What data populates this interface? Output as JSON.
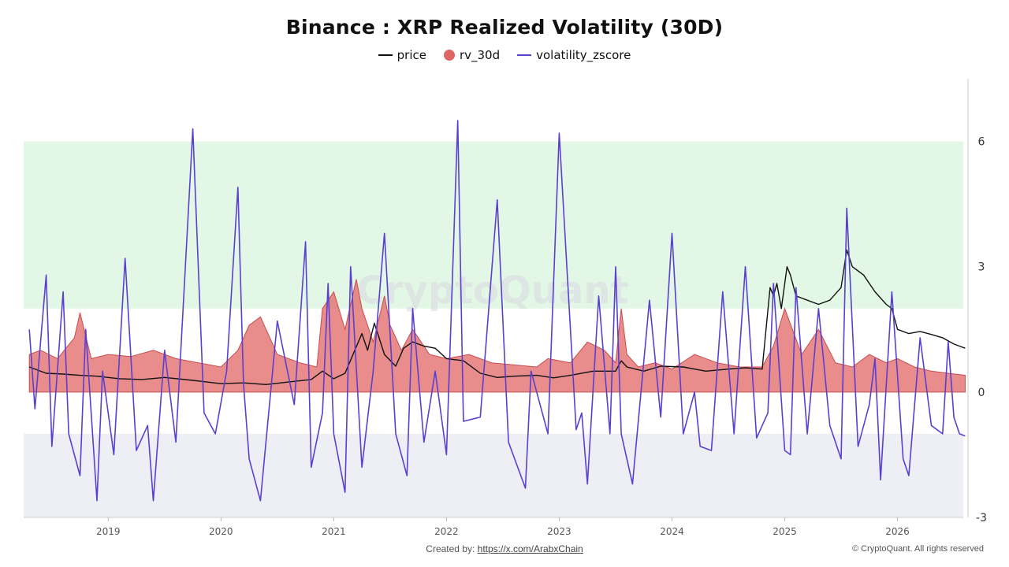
{
  "chart_data": {
    "type": "line",
    "title": "Binance : XRP Realized Volatility (30D)",
    "watermark": "CryptoQuant",
    "x_ticks": [
      "2019",
      "2020",
      "2021",
      "2022",
      "2023",
      "2024",
      "2025",
      "2026"
    ],
    "xlim": [
      "2018-04",
      "2026-08"
    ],
    "y_ticks": [
      6,
      3,
      0,
      -3
    ],
    "ylim": [
      -3,
      7.5
    ],
    "grid": false,
    "legend_position": "top-center",
    "bands": [
      {
        "y_from": 2,
        "y_to": 6,
        "color": "#e3f7e6"
      },
      {
        "y_from": -3,
        "y_to": -1,
        "color": "#eeeff4"
      }
    ],
    "legend": [
      {
        "name": "price",
        "color": "#111111",
        "marker": "line"
      },
      {
        "name": "rv_30d",
        "color": "#e06666",
        "marker": "circle"
      },
      {
        "name": "volatility_zscore",
        "color": "#5a40d0",
        "marker": "line"
      }
    ],
    "series": [
      {
        "name": "price",
        "color": "#111111",
        "x": [
          2018.3,
          2018.45,
          2018.6,
          2018.75,
          2018.9,
          2019.1,
          2019.3,
          2019.5,
          2019.75,
          2020.0,
          2020.2,
          2020.4,
          2020.6,
          2020.8,
          2020.9,
          2021.0,
          2021.1,
          2021.25,
          2021.3,
          2021.36,
          2021.45,
          2021.55,
          2021.62,
          2021.7,
          2021.8,
          2021.9,
          2022.0,
          2022.15,
          2022.3,
          2022.45,
          2022.6,
          2022.8,
          2022.95,
          2023.1,
          2023.3,
          2023.5,
          2023.55,
          2023.6,
          2023.75,
          2023.9,
          2024.1,
          2024.3,
          2024.5,
          2024.65,
          2024.8,
          2024.87,
          2024.9,
          2024.93,
          2024.97,
          2025.02,
          2025.05,
          2025.1,
          2025.2,
          2025.3,
          2025.4,
          2025.5,
          2025.55,
          2025.6,
          2025.65,
          2025.7,
          2025.8,
          2025.9,
          2025.95,
          2026.0,
          2026.1,
          2026.2,
          2026.3,
          2026.4,
          2026.5,
          2026.55,
          2026.6
        ],
        "values": [
          0.6,
          0.45,
          0.43,
          0.4,
          0.38,
          0.32,
          0.3,
          0.35,
          0.28,
          0.2,
          0.22,
          0.18,
          0.24,
          0.3,
          0.5,
          0.32,
          0.45,
          1.4,
          1.0,
          1.65,
          0.9,
          0.62,
          1.05,
          1.2,
          1.1,
          1.05,
          0.8,
          0.75,
          0.45,
          0.35,
          0.38,
          0.4,
          0.34,
          0.4,
          0.5,
          0.5,
          0.75,
          0.6,
          0.5,
          0.62,
          0.6,
          0.5,
          0.55,
          0.58,
          0.55,
          2.5,
          2.3,
          2.6,
          2.0,
          3.0,
          2.8,
          2.3,
          2.2,
          2.1,
          2.2,
          2.5,
          3.4,
          3.0,
          2.9,
          2.8,
          2.4,
          2.1,
          2.0,
          1.5,
          1.4,
          1.45,
          1.38,
          1.3,
          1.15,
          1.1,
          1.05
        ]
      },
      {
        "name": "rv_30d",
        "color": "#e06666",
        "type": "area",
        "x": [
          2018.3,
          2018.4,
          2018.55,
          2018.7,
          2018.75,
          2018.85,
          2019.0,
          2019.2,
          2019.4,
          2019.6,
          2019.8,
          2020.0,
          2020.15,
          2020.25,
          2020.35,
          2020.5,
          2020.7,
          2020.85,
          2020.9,
          2021.0,
          2021.1,
          2021.2,
          2021.25,
          2021.35,
          2021.45,
          2021.5,
          2021.6,
          2021.7,
          2021.85,
          2022.0,
          2022.2,
          2022.4,
          2022.6,
          2022.8,
          2022.9,
          2023.1,
          2023.25,
          2023.4,
          2023.5,
          2023.55,
          2023.6,
          2023.7,
          2023.85,
          2024.0,
          2024.2,
          2024.4,
          2024.6,
          2024.8,
          2024.9,
          2025.0,
          2025.15,
          2025.3,
          2025.45,
          2025.6,
          2025.75,
          2025.9,
          2026.0,
          2026.15,
          2026.3,
          2026.45,
          2026.6
        ],
        "values": [
          0.9,
          1.0,
          0.8,
          1.3,
          1.9,
          0.8,
          0.9,
          0.85,
          1.0,
          0.8,
          0.7,
          0.6,
          1.0,
          1.6,
          1.8,
          0.9,
          0.7,
          0.6,
          2.0,
          2.4,
          1.5,
          2.7,
          2.0,
          1.2,
          2.3,
          1.6,
          1.0,
          1.5,
          0.9,
          0.8,
          0.9,
          0.7,
          0.65,
          0.6,
          0.8,
          0.7,
          1.2,
          1.0,
          0.7,
          2.0,
          0.9,
          0.6,
          0.7,
          0.55,
          0.9,
          0.7,
          0.6,
          0.6,
          1.1,
          2.0,
          0.9,
          1.5,
          0.7,
          0.6,
          0.9,
          0.7,
          0.8,
          0.6,
          0.5,
          0.45,
          0.4
        ]
      },
      {
        "name": "volatility_zscore",
        "color": "#5a40d0",
        "x": [
          2018.3,
          2018.35,
          2018.45,
          2018.5,
          2018.6,
          2018.65,
          2018.75,
          2018.8,
          2018.9,
          2018.95,
          2019.05,
          2019.15,
          2019.25,
          2019.35,
          2019.4,
          2019.5,
          2019.6,
          2019.75,
          2019.85,
          2019.95,
          2020.05,
          2020.15,
          2020.2,
          2020.25,
          2020.35,
          2020.5,
          2020.65,
          2020.75,
          2020.8,
          2020.9,
          2020.95,
          2021.0,
          2021.1,
          2021.15,
          2021.25,
          2021.35,
          2021.45,
          2021.55,
          2021.65,
          2021.7,
          2021.8,
          2021.9,
          2022.0,
          2022.1,
          2022.15,
          2022.3,
          2022.45,
          2022.55,
          2022.7,
          2022.75,
          2022.9,
          2023.0,
          2023.15,
          2023.2,
          2023.25,
          2023.35,
          2023.45,
          2023.5,
          2023.55,
          2023.65,
          2023.8,
          2023.9,
          2024.0,
          2024.1,
          2024.2,
          2024.25,
          2024.35,
          2024.45,
          2024.55,
          2024.65,
          2024.75,
          2024.85,
          2024.9,
          2025.0,
          2025.05,
          2025.1,
          2025.2,
          2025.3,
          2025.4,
          2025.5,
          2025.55,
          2025.65,
          2025.75,
          2025.8,
          2025.85,
          2025.95,
          2026.05,
          2026.1,
          2026.2,
          2026.3,
          2026.4,
          2026.45,
          2026.5,
          2026.55,
          2026.6
        ],
        "values": [
          1.5,
          -0.4,
          2.8,
          -1.3,
          2.4,
          -1.0,
          -2.0,
          1.5,
          -2.6,
          0.5,
          -1.5,
          3.2,
          -1.4,
          -0.8,
          -2.6,
          1.0,
          -1.2,
          6.3,
          -0.5,
          -1.0,
          0.5,
          4.9,
          0.2,
          -1.6,
          -2.6,
          1.7,
          -0.3,
          3.6,
          -1.8,
          -0.5,
          2.6,
          -1.0,
          -2.4,
          3.0,
          -1.8,
          0.5,
          3.8,
          -1.0,
          -2.0,
          2.0,
          -1.2,
          0.5,
          -1.5,
          6.5,
          -0.7,
          -0.6,
          4.6,
          -1.2,
          -2.3,
          0.5,
          -1.0,
          6.2,
          -0.9,
          -0.5,
          -2.2,
          2.3,
          -1.0,
          3.0,
          -1.0,
          -2.2,
          2.2,
          -0.6,
          3.8,
          -1.0,
          0.0,
          -1.3,
          -1.4,
          2.4,
          -1.0,
          3.0,
          -1.1,
          -0.5,
          2.6,
          -1.4,
          -1.5,
          2.5,
          -1.0,
          2.0,
          -0.8,
          -1.6,
          4.4,
          -1.3,
          -0.3,
          0.8,
          -2.1,
          2.4,
          -1.6,
          -2.0,
          1.3,
          -0.8,
          -1.0,
          1.2,
          -0.6,
          -1.0,
          -1.05
        ]
      }
    ]
  },
  "footer": {
    "credit_prefix": "Created by: ",
    "credit_link": "https://x.com/ArabxChain",
    "copyright": "© CryptoQuant. All rights reserved"
  }
}
